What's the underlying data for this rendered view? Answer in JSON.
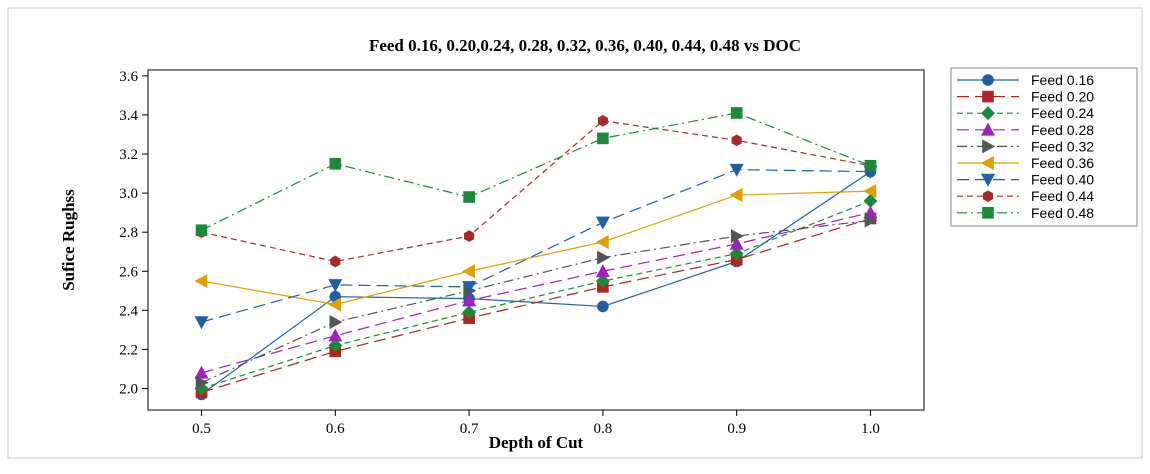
{
  "chart_data": {
    "type": "line",
    "title": "Feed 0.16, 0.20,0.24, 0.28, 0.32, 0.36, 0.40, 0.44, 0.48 vs DOC",
    "xlabel": "Depth of Cut",
    "ylabel": "Surface Roughness",
    "ylabel_as_rendered": "Sufice Rughss",
    "x": [
      0.5,
      0.6,
      0.7,
      0.8,
      0.9,
      1.0
    ],
    "x_tick_labels": [
      "0.5",
      "0.6",
      "0.7",
      "0.8",
      "0.9",
      "1.0"
    ],
    "y_ticks": [
      2.0,
      2.2,
      2.4,
      2.6,
      2.8,
      3.0,
      3.2,
      3.4,
      3.6
    ],
    "y_tick_labels": [
      "2.0",
      "2.2",
      "2.4",
      "2.6",
      "2.8",
      "3.0",
      "3.2",
      "3.4",
      "3.6"
    ],
    "xlim": [
      0.46,
      1.04
    ],
    "ylim": [
      1.89,
      3.63
    ],
    "grid": false,
    "legend_position": "right",
    "series": [
      {
        "name": "Feed 0.16",
        "color": "#1f5fa8",
        "marker": "circle",
        "dash": "solid",
        "values": [
          1.97,
          2.47,
          2.46,
          2.42,
          2.65,
          3.11
        ]
      },
      {
        "name": "Feed 0.20",
        "color": "#b22222",
        "marker": "square",
        "dash": "long-dash",
        "values": [
          1.98,
          2.19,
          2.36,
          2.52,
          2.66,
          2.87
        ]
      },
      {
        "name": "Feed 0.24",
        "color": "#1a8a3a",
        "marker": "diamond",
        "dash": "dash",
        "values": [
          2.0,
          2.22,
          2.39,
          2.55,
          2.69,
          2.96
        ]
      },
      {
        "name": "Feed 0.28",
        "color": "#a020c0",
        "marker": "triangle-up",
        "dash": "long-dash",
        "values": [
          2.08,
          2.27,
          2.45,
          2.6,
          2.74,
          2.9
        ]
      },
      {
        "name": "Feed 0.32",
        "color": "#555555",
        "marker": "triangle-right",
        "dash": "dash-dot",
        "values": [
          2.03,
          2.34,
          2.5,
          2.67,
          2.78,
          2.86
        ]
      },
      {
        "name": "Feed 0.36",
        "color": "#e0a000",
        "marker": "triangle-left",
        "dash": "solid",
        "values": [
          2.55,
          2.43,
          2.6,
          2.75,
          2.99,
          3.01
        ]
      },
      {
        "name": "Feed 0.40",
        "color": "#1f5fa8",
        "marker": "triangle-down",
        "dash": "long-dash",
        "values": [
          2.34,
          2.53,
          2.52,
          2.85,
          3.12,
          3.11
        ]
      },
      {
        "name": "Feed 0.44",
        "color": "#a52a2a",
        "marker": "hexagon",
        "dash": "dash",
        "values": [
          2.8,
          2.65,
          2.78,
          3.37,
          3.27,
          3.14
        ]
      },
      {
        "name": "Feed 0.48",
        "color": "#1a8a3a",
        "marker": "square",
        "dash": "dash-dot",
        "values": [
          2.81,
          3.15,
          2.98,
          3.28,
          3.41,
          3.14
        ]
      }
    ]
  }
}
